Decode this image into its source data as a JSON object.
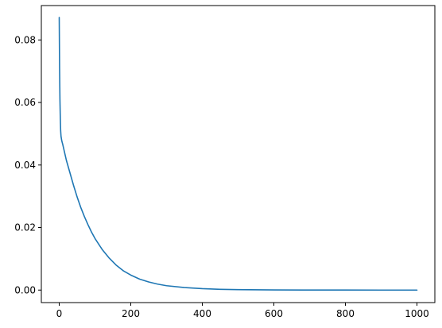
{
  "chart_data": {
    "type": "line",
    "title": "",
    "xlabel": "",
    "ylabel": "",
    "xlim": [
      -50,
      1050
    ],
    "ylim": [
      -0.004,
      0.091
    ],
    "grid": false,
    "x_ticks": [
      0,
      200,
      400,
      600,
      800,
      1000
    ],
    "x_tick_labels": [
      "0",
      "200",
      "400",
      "600",
      "800",
      "1000"
    ],
    "y_ticks": [
      0.0,
      0.02,
      0.04,
      0.06,
      0.08
    ],
    "y_tick_labels": [
      "0.00",
      "0.02",
      "0.04",
      "0.06",
      "0.08"
    ],
    "series": [
      {
        "color": "#1f77b4",
        "x": [
          0,
          1,
          2,
          3,
          4,
          5,
          7,
          10,
          15,
          20,
          30,
          40,
          50,
          60,
          70,
          80,
          90,
          100,
          120,
          140,
          160,
          180,
          200,
          225,
          250,
          275,
          300,
          350,
          400,
          450,
          500,
          600,
          700,
          800,
          900,
          1000
        ],
        "y": [
          0.0872,
          0.071,
          0.061,
          0.055,
          0.051,
          0.0492,
          0.0478,
          0.0465,
          0.044,
          0.0415,
          0.0375,
          0.0335,
          0.0298,
          0.0265,
          0.0236,
          0.021,
          0.0186,
          0.0165,
          0.013,
          0.0102,
          0.0079,
          0.0061,
          0.0048,
          0.0035,
          0.0026,
          0.0019,
          0.0014,
          0.0008,
          0.00045,
          0.00025,
          0.00014,
          5e-05,
          2e-05,
          1e-05,
          0.0,
          0.0
        ]
      }
    ]
  }
}
